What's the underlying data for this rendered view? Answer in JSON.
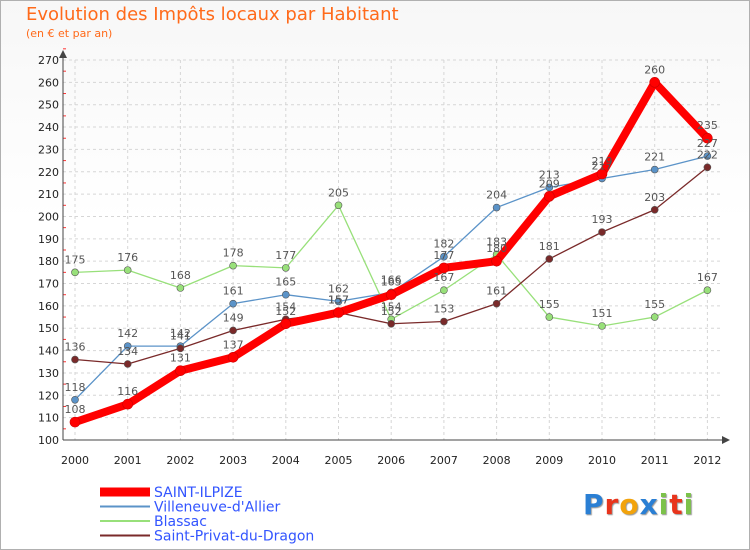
{
  "title": "Evolution des Impôts locaux par Habitant",
  "subtitle": "(en € et par an)",
  "logo": [
    "P",
    "r",
    "o",
    "x",
    "i",
    "t",
    "i"
  ],
  "logo_colors": [
    "#2a7fd4",
    "#e8341c",
    "#f2a30c",
    "#2a7fd4",
    "#7cc24a",
    "#e8341c",
    "#7cc24a"
  ],
  "chart_data": {
    "type": "line",
    "title": "Evolution des Impôts locaux par Habitant",
    "subtitle": "(en € et par an)",
    "x": [
      "2000",
      "2001",
      "2002",
      "2003",
      "2004",
      "2005",
      "2006",
      "2007",
      "2008",
      "2009",
      "2010",
      "2011",
      "2012"
    ],
    "ylim": [
      100,
      270
    ],
    "yticks": [
      "100",
      "110",
      "120",
      "130",
      "140",
      "150",
      "160",
      "170",
      "180",
      "190",
      "200",
      "210",
      "220",
      "230",
      "240",
      "250",
      "260",
      "270"
    ],
    "grid": true,
    "legend_position": "bottom-left",
    "series": [
      {
        "name": "SAINT-ILPIZE",
        "color": "#ff0000",
        "values": [
          108,
          116,
          131,
          137,
          152,
          157,
          165,
          177,
          180,
          209,
          219,
          260,
          235
        ],
        "labels": [
          "108",
          "116",
          "131",
          "137",
          "152",
          "157",
          "165",
          "177",
          "180",
          "209",
          "219",
          "260",
          "235"
        ]
      },
      {
        "name": "Villeneuve-d'Allier",
        "color": "#5b93c8",
        "values": [
          118,
          142,
          142,
          161,
          165,
          162,
          166,
          182,
          204,
          213,
          217,
          221,
          227
        ],
        "labels": [
          "118",
          "142",
          "142",
          "161",
          "165",
          "162",
          "166",
          "182",
          "204",
          "213",
          "217",
          "221",
          "227"
        ]
      },
      {
        "name": "Blassac",
        "color": "#98e07a",
        "values": [
          175,
          176,
          168,
          178,
          177,
          205,
          154,
          167,
          183,
          155,
          151,
          155,
          167
        ],
        "labels": [
          "175",
          "176",
          "168",
          "178",
          "177",
          "205",
          "154",
          "167",
          "183",
          "155",
          "151",
          "155",
          "167"
        ]
      },
      {
        "name": "Saint-Privat-du-Dragon",
        "color": "#7a2a2a",
        "values": [
          136,
          134,
          141,
          149,
          154,
          157,
          152,
          153,
          161,
          181,
          193,
          203,
          222
        ],
        "labels": [
          "136",
          "134",
          "141",
          "149",
          "154",
          "157",
          "152",
          "153",
          "161",
          "181",
          "193",
          "203",
          "222"
        ]
      }
    ]
  }
}
